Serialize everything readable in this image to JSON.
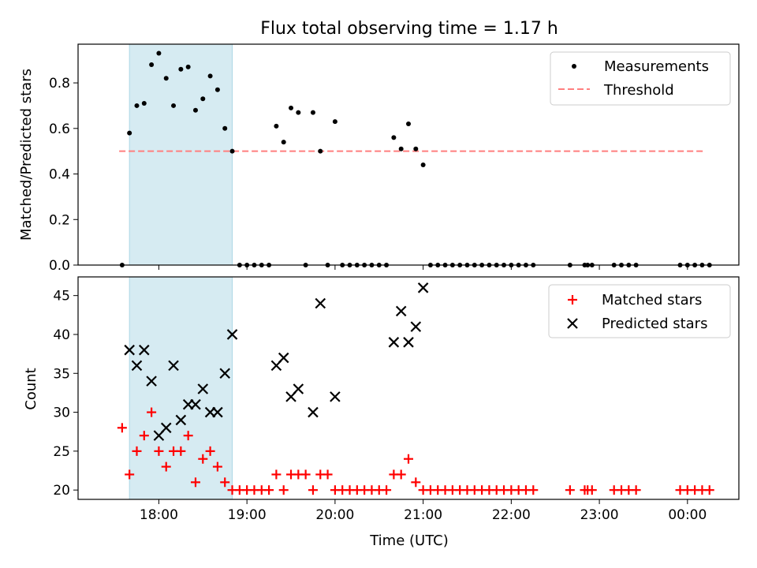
{
  "figure": {
    "title": "Flux total observing time = 1.17 h",
    "xlabel": "Time (UTC)"
  },
  "colors": {
    "span": "#add8e6",
    "threshold": "#ff7f7f",
    "matched": "#ff0000",
    "predicted": "#000000",
    "measurement": "#000000"
  },
  "chart_data": [
    {
      "type": "scatter",
      "ylabel": "Matched/Predicted stars",
      "xlim": [
        "17:05",
        "00:35"
      ],
      "ylim": [
        0,
        0.97
      ],
      "yticks": [
        0.0,
        0.2,
        0.4,
        0.6,
        0.8
      ],
      "ytick_labels": [
        "0.0",
        "0.2",
        "0.4",
        "0.6",
        "0.8"
      ],
      "shaded_span": [
        "17:40",
        "18:50"
      ],
      "legend_position": "upper right",
      "threshold": {
        "name": "Threshold",
        "value": 0.5,
        "x_range": [
          "17:33",
          "00:12"
        ]
      },
      "series": [
        {
          "name": "Measurements",
          "points": [
            [
              "17:35",
              0.0
            ],
            [
              "17:40",
              0.58
            ],
            [
              "17:45",
              0.7
            ],
            [
              "17:50",
              0.71
            ],
            [
              "17:55",
              0.88
            ],
            [
              "18:00",
              0.93
            ],
            [
              "18:05",
              0.82
            ],
            [
              "18:10",
              0.7
            ],
            [
              "18:15",
              0.86
            ],
            [
              "18:20",
              0.87
            ],
            [
              "18:25",
              0.68
            ],
            [
              "18:30",
              0.73
            ],
            [
              "18:35",
              0.83
            ],
            [
              "18:40",
              0.77
            ],
            [
              "18:45",
              0.6
            ],
            [
              "18:50",
              0.5
            ],
            [
              "18:55",
              0.0
            ],
            [
              "19:00",
              0.0
            ],
            [
              "19:05",
              0.0
            ],
            [
              "19:10",
              0.0
            ],
            [
              "19:15",
              0.0
            ],
            [
              "19:20",
              0.61
            ],
            [
              "19:25",
              0.54
            ],
            [
              "19:30",
              0.69
            ],
            [
              "19:35",
              0.67
            ],
            [
              "19:40",
              0.0
            ],
            [
              "19:45",
              0.67
            ],
            [
              "19:50",
              0.5
            ],
            [
              "19:55",
              0.0
            ],
            [
              "20:00",
              0.63
            ],
            [
              "20:05",
              0.0
            ],
            [
              "20:10",
              0.0
            ],
            [
              "20:15",
              0.0
            ],
            [
              "20:20",
              0.0
            ],
            [
              "20:25",
              0.0
            ],
            [
              "20:30",
              0.0
            ],
            [
              "20:35",
              0.0
            ],
            [
              "20:40",
              0.56
            ],
            [
              "20:45",
              0.51
            ],
            [
              "20:50",
              0.62
            ],
            [
              "20:55",
              0.51
            ],
            [
              "21:00",
              0.44
            ],
            [
              "21:05",
              0.0
            ],
            [
              "21:10",
              0.0
            ],
            [
              "21:15",
              0.0
            ],
            [
              "21:20",
              0.0
            ],
            [
              "21:25",
              0.0
            ],
            [
              "21:30",
              0.0
            ],
            [
              "21:35",
              0.0
            ],
            [
              "21:40",
              0.0
            ],
            [
              "21:45",
              0.0
            ],
            [
              "21:50",
              0.0
            ],
            [
              "21:55",
              0.0
            ],
            [
              "22:00",
              0.0
            ],
            [
              "22:05",
              0.0
            ],
            [
              "22:10",
              0.0
            ],
            [
              "22:15",
              0.0
            ],
            [
              "22:40",
              0.0
            ],
            [
              "22:50",
              0.0
            ],
            [
              "22:52",
              0.0
            ],
            [
              "22:55",
              0.0
            ],
            [
              "23:10",
              0.0
            ],
            [
              "23:15",
              0.0
            ],
            [
              "23:20",
              0.0
            ],
            [
              "23:25",
              0.0
            ],
            [
              "23:55",
              0.0
            ],
            [
              "00:00",
              0.0
            ],
            [
              "00:05",
              0.0
            ],
            [
              "00:10",
              0.0
            ],
            [
              "00:15",
              0.0
            ]
          ]
        }
      ]
    },
    {
      "type": "scatter",
      "ylabel": "Count",
      "xlim": [
        "17:05",
        "00:35"
      ],
      "ylim": [
        18.8,
        47.4
      ],
      "yticks": [
        20,
        25,
        30,
        35,
        40,
        45
      ],
      "xtick_labels": [
        "18:00",
        "19:00",
        "20:00",
        "21:00",
        "22:00",
        "23:00",
        "00:00"
      ],
      "shaded_span": [
        "17:40",
        "18:50"
      ],
      "legend_position": "upper right",
      "series": [
        {
          "name": "Matched stars",
          "marker": "plus",
          "points": [
            [
              "17:35",
              28
            ],
            [
              "17:40",
              22
            ],
            [
              "17:45",
              25
            ],
            [
              "17:50",
              27
            ],
            [
              "17:55",
              30
            ],
            [
              "18:00",
              25
            ],
            [
              "18:05",
              23
            ],
            [
              "18:10",
              25
            ],
            [
              "18:15",
              25
            ],
            [
              "18:20",
              27
            ],
            [
              "18:25",
              21
            ],
            [
              "18:30",
              24
            ],
            [
              "18:35",
              25
            ],
            [
              "18:40",
              23
            ],
            [
              "18:45",
              21
            ],
            [
              "18:50",
              20
            ],
            [
              "18:55",
              20
            ],
            [
              "19:00",
              20
            ],
            [
              "19:05",
              20
            ],
            [
              "19:10",
              20
            ],
            [
              "19:15",
              20
            ],
            [
              "19:20",
              22
            ],
            [
              "19:25",
              20
            ],
            [
              "19:30",
              22
            ],
            [
              "19:35",
              22
            ],
            [
              "19:40",
              22
            ],
            [
              "19:45",
              20
            ],
            [
              "19:50",
              22
            ],
            [
              "19:55",
              22
            ],
            [
              "20:00",
              20
            ],
            [
              "20:05",
              20
            ],
            [
              "20:10",
              20
            ],
            [
              "20:15",
              20
            ],
            [
              "20:20",
              20
            ],
            [
              "20:25",
              20
            ],
            [
              "20:30",
              20
            ],
            [
              "20:35",
              20
            ],
            [
              "20:40",
              22
            ],
            [
              "20:45",
              22
            ],
            [
              "20:50",
              24
            ],
            [
              "20:55",
              21
            ],
            [
              "21:00",
              20
            ],
            [
              "21:05",
              20
            ],
            [
              "21:10",
              20
            ],
            [
              "21:15",
              20
            ],
            [
              "21:20",
              20
            ],
            [
              "21:25",
              20
            ],
            [
              "21:30",
              20
            ],
            [
              "21:35",
              20
            ],
            [
              "21:40",
              20
            ],
            [
              "21:45",
              20
            ],
            [
              "21:50",
              20
            ],
            [
              "21:55",
              20
            ],
            [
              "22:00",
              20
            ],
            [
              "22:05",
              20
            ],
            [
              "22:10",
              20
            ],
            [
              "22:15",
              20
            ],
            [
              "22:40",
              20
            ],
            [
              "22:50",
              20
            ],
            [
              "22:52",
              20
            ],
            [
              "22:55",
              20
            ],
            [
              "23:10",
              20
            ],
            [
              "23:15",
              20
            ],
            [
              "23:20",
              20
            ],
            [
              "23:25",
              20
            ],
            [
              "23:55",
              20
            ],
            [
              "00:00",
              20
            ],
            [
              "00:05",
              20
            ],
            [
              "00:10",
              20
            ],
            [
              "00:15",
              20
            ]
          ]
        },
        {
          "name": "Predicted stars",
          "marker": "x",
          "points": [
            [
              "17:40",
              38
            ],
            [
              "17:45",
              36
            ],
            [
              "17:50",
              38
            ],
            [
              "17:55",
              34
            ],
            [
              "18:00",
              27
            ],
            [
              "18:05",
              28
            ],
            [
              "18:10",
              36
            ],
            [
              "18:15",
              29
            ],
            [
              "18:20",
              31
            ],
            [
              "18:25",
              31
            ],
            [
              "18:30",
              33
            ],
            [
              "18:35",
              30
            ],
            [
              "18:40",
              30
            ],
            [
              "18:45",
              35
            ],
            [
              "18:50",
              40
            ],
            [
              "19:20",
              36
            ],
            [
              "19:25",
              37
            ],
            [
              "19:30",
              32
            ],
            [
              "19:35",
              33
            ],
            [
              "19:45",
              30
            ],
            [
              "19:50",
              44
            ],
            [
              "20:00",
              32
            ],
            [
              "20:40",
              39
            ],
            [
              "20:45",
              43
            ],
            [
              "20:50",
              39
            ],
            [
              "20:55",
              41
            ],
            [
              "21:00",
              46
            ]
          ]
        }
      ]
    }
  ]
}
